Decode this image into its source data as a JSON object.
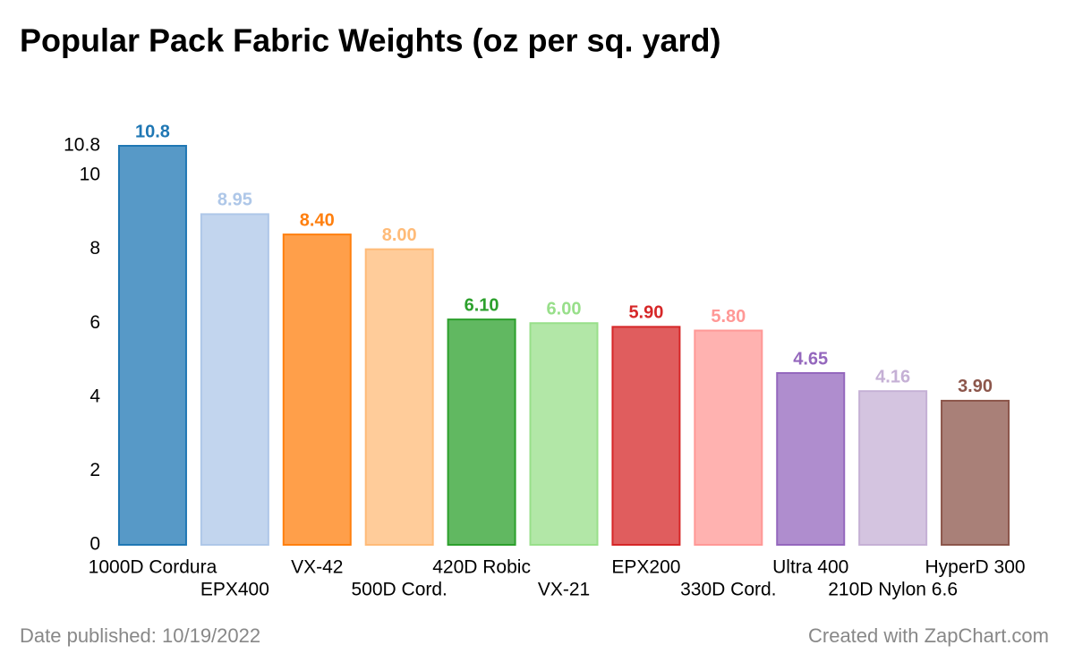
{
  "chart_data": {
    "type": "bar",
    "title": "Popular Pack Fabric Weights (oz per sq. yard)",
    "categories": [
      "1000D Cordura",
      "EPX400",
      "VX-42",
      "500D Cord.",
      "420D Robic",
      "VX-21",
      "EPX200",
      "330D Cord.",
      "Ultra 400",
      "210D Nylon 6.6",
      "HyperD 300"
    ],
    "values": [
      10.8,
      8.95,
      8.4,
      8,
      6.1,
      6,
      5.9,
      5.8,
      4.65,
      4.16,
      3.9
    ],
    "value_labels": [
      "10.8",
      "8.95",
      "8.40",
      "8.00",
      "6.10",
      "6.00",
      "5.90",
      "5.80",
      "4.65",
      "4.16",
      "3.90"
    ],
    "colors": [
      "#1f77b4",
      "#aec7e8",
      "#ff7f0e",
      "#ffbb78",
      "#2ca02c",
      "#98df8a",
      "#d62728",
      "#ff9896",
      "#9467bd",
      "#c5b0d5",
      "#8c564b"
    ],
    "ylim": [
      0,
      10.8
    ],
    "yticks": [
      0,
      2,
      4,
      6,
      8,
      10,
      10.8
    ],
    "grid": false
  },
  "footer": {
    "date": "Date published: 10/19/2022",
    "credit": "Created with ZapChart.com"
  }
}
